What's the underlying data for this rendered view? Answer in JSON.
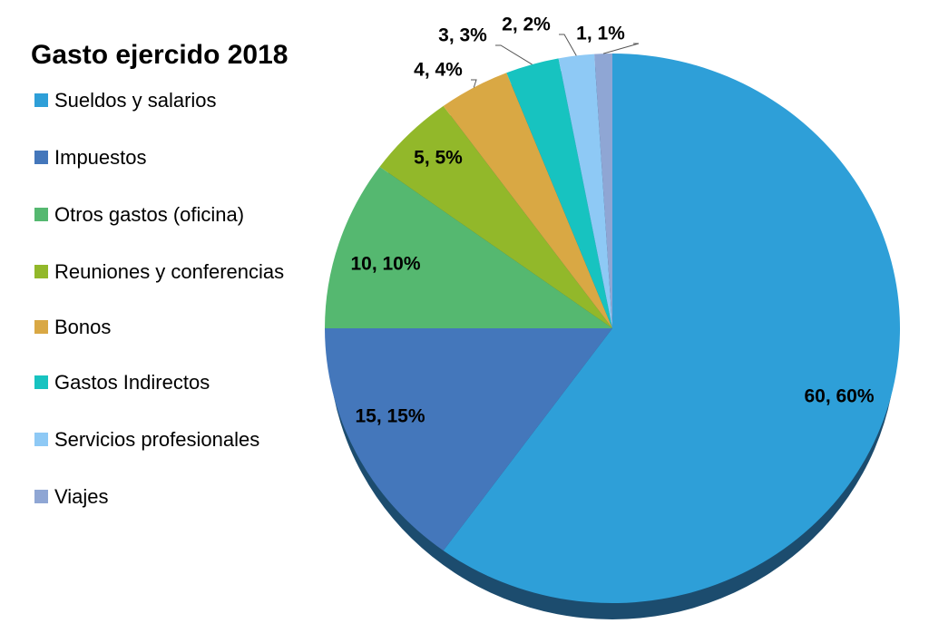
{
  "chart_data": {
    "type": "pie",
    "title": "Gasto ejercido 2018",
    "categories": [
      "Sueldos y salarios",
      "Impuestos",
      "Otros gastos (oficina)",
      "Reuniones y conferencias",
      "Bonos",
      "Gastos Indirectos",
      "Servicios profesionales",
      "Viajes"
    ],
    "values": [
      60,
      15,
      10,
      5,
      4,
      3,
      2,
      1
    ],
    "value_labels": [
      "60, 60%",
      "15, 15%",
      "10, 10%",
      "5, 5%",
      "4, 4%",
      "3, 3%",
      "2, 2%",
      "1, 1%"
    ],
    "colors": [
      "#2e9fd8",
      "#4477bb",
      "#55b870",
      "#92b82a",
      "#d9a844",
      "#17c3c0",
      "#8ec9f5",
      "#8fa6d4"
    ],
    "legend": "left"
  }
}
